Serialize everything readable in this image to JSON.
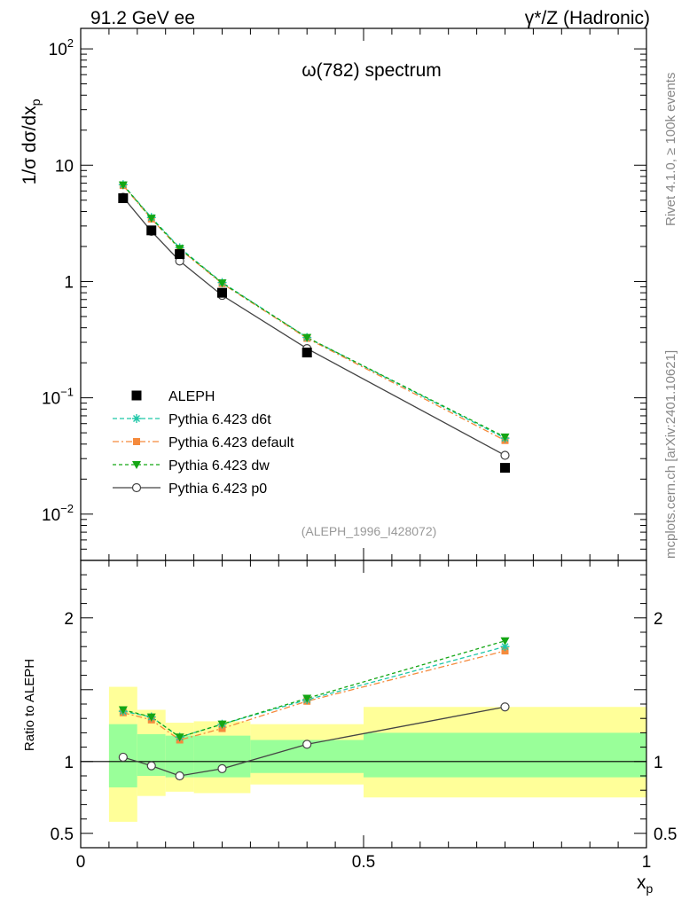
{
  "header": {
    "left": "91.2 GeV ee",
    "right": "γ*/Z (Hadronic)"
  },
  "side_labels": {
    "rivet": "Rivet 4.1.0, ≥ 100k events",
    "mcplots": "mcplots.cern.ch [arXiv:2401.10621]"
  },
  "colors": {
    "data": "#000000",
    "d6t": "#1fc7a8",
    "default": "#f58a3c",
    "dw": "#14a614",
    "p0": "#444444",
    "band_inner": "#99ff99",
    "band_outer": "#ffff99"
  },
  "chart_data": [
    {
      "type": "line",
      "panel": "main",
      "title": "ω(782) spectrum",
      "analysis_tag": "(ALEPH_1996_I428072)",
      "xlabel": "x_p",
      "ylabel": "1/σ dσ/dx_p",
      "yscale": "log",
      "xlim": [
        0,
        1
      ],
      "ylim": [
        0.004,
        150
      ],
      "y_ticks": [
        {
          "value": 100,
          "base": "10",
          "exp": "2"
        },
        {
          "value": 10,
          "label": "10"
        },
        {
          "value": 1,
          "label": "1"
        },
        {
          "value": 0.1,
          "base": "10",
          "exp": "−1"
        },
        {
          "value": 0.01,
          "base": "10",
          "exp": "−2"
        }
      ],
      "x": [
        0.075,
        0.125,
        0.175,
        0.25,
        0.4,
        0.75
      ],
      "x_bins": [
        [
          0.05,
          0.1
        ],
        [
          0.1,
          0.15
        ],
        [
          0.15,
          0.2
        ],
        [
          0.2,
          0.3
        ],
        [
          0.3,
          0.5
        ],
        [
          0.5,
          1.0
        ]
      ],
      "legend": {
        "position": "lower-left",
        "entries": [
          "ALEPH",
          "Pythia 6.423 d6t",
          "Pythia 6.423 default",
          "Pythia 6.423 dw",
          "Pythia 6.423 p0"
        ]
      },
      "series": [
        {
          "name": "ALEPH",
          "key": "data",
          "values": [
            5.2,
            2.75,
            1.72,
            0.8,
            0.245,
            0.025
          ]
        },
        {
          "name": "Pythia 6.423 d6t",
          "key": "d6t",
          "values": [
            6.8,
            3.55,
            1.95,
            0.98,
            0.33,
            0.045
          ]
        },
        {
          "name": "Pythia 6.423 default",
          "key": "default",
          "values": [
            6.7,
            3.45,
            1.9,
            0.96,
            0.325,
            0.043
          ]
        },
        {
          "name": "Pythia 6.423 dw",
          "key": "dw",
          "values": [
            6.75,
            3.5,
            1.92,
            0.97,
            0.33,
            0.046
          ]
        },
        {
          "name": "Pythia 6.423 p0",
          "key": "p0",
          "values": [
            5.3,
            2.7,
            1.5,
            0.76,
            0.265,
            0.032
          ]
        }
      ]
    },
    {
      "type": "line",
      "panel": "ratio",
      "ylabel": "Ratio to ALEPH",
      "xlabel": "x_p",
      "xlim": [
        0,
        1
      ],
      "ylim": [
        0.4,
        2.4
      ],
      "y_ticks": [
        {
          "value": 0.5,
          "label": "0.5"
        },
        {
          "value": 1,
          "label": "1"
        },
        {
          "value": 2,
          "label": "2"
        }
      ],
      "x_ticks": [
        {
          "value": 0,
          "label": "0"
        },
        {
          "value": 0.5,
          "label": "0.5"
        },
        {
          "value": 1,
          "label": "1"
        }
      ],
      "x": [
        0.075,
        0.125,
        0.175,
        0.25,
        0.4,
        0.75
      ],
      "bands": [
        {
          "x0": 0.05,
          "x1": 0.1,
          "inner": [
            0.82,
            1.26
          ],
          "outer": [
            0.58,
            1.52
          ]
        },
        {
          "x0": 0.1,
          "x1": 0.15,
          "inner": [
            0.9,
            1.19
          ],
          "outer": [
            0.76,
            1.36
          ]
        },
        {
          "x0": 0.15,
          "x1": 0.2,
          "inner": [
            0.89,
            1.18
          ],
          "outer": [
            0.79,
            1.27
          ]
        },
        {
          "x0": 0.2,
          "x1": 0.3,
          "inner": [
            0.89,
            1.18
          ],
          "outer": [
            0.78,
            1.28
          ]
        },
        {
          "x0": 0.3,
          "x1": 0.5,
          "inner": [
            0.92,
            1.15
          ],
          "outer": [
            0.84,
            1.26
          ]
        },
        {
          "x0": 0.5,
          "x1": 1.0,
          "inner": [
            0.89,
            1.2
          ],
          "outer": [
            0.75,
            1.38
          ]
        }
      ],
      "series": [
        {
          "name": "Pythia 6.423 d6t",
          "key": "d6t",
          "values": [
            1.35,
            1.31,
            1.17,
            1.26,
            1.43,
            1.8
          ]
        },
        {
          "name": "Pythia 6.423 default",
          "key": "default",
          "values": [
            1.34,
            1.29,
            1.15,
            1.23,
            1.42,
            1.77
          ]
        },
        {
          "name": "Pythia 6.423 dw",
          "key": "dw",
          "values": [
            1.36,
            1.31,
            1.17,
            1.26,
            1.44,
            1.84
          ]
        },
        {
          "name": "Pythia 6.423 p0",
          "key": "p0",
          "values": [
            1.03,
            0.97,
            0.9,
            0.95,
            1.12,
            1.38
          ]
        }
      ]
    }
  ]
}
